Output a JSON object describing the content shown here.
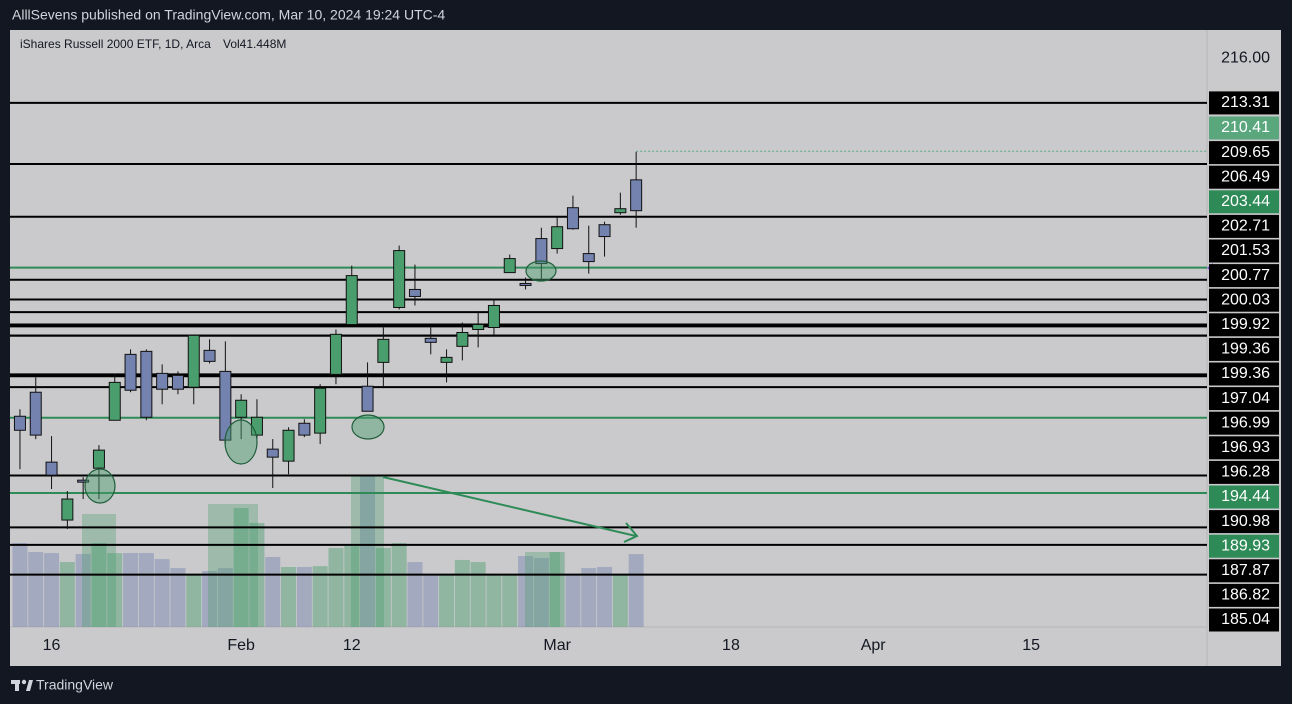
{
  "header": {
    "publisher": "AlllSevens published on TradingView.com, Mar 10, 2024 19:24 UTC-4"
  },
  "footer": {
    "brand": "TradingView"
  },
  "chart_data": {
    "type": "candlestick",
    "title": "iShares Russell 2000 ETF, 1D, Arca",
    "volume_label": "Vol41.448M",
    "up_color": "#4a9e6e",
    "down_color": "#7482b0",
    "open": [
      194.53,
      195.97,
      191.78,
      188.31,
      190.7,
      191.42,
      194.29,
      198.24,
      198.42,
      197.1,
      196.98,
      196.27,
      198.48,
      197.22,
      194.47,
      193.4,
      192.56,
      191.84,
      194.11,
      193.52,
      197.04,
      200.03,
      196.33,
      197.76,
      201.05,
      202.13,
      199.2,
      197.76,
      198.72,
      199.73,
      199.85,
      203.14,
      202.49,
      205.18,
      204.58,
      207.03,
      204.28,
      206.01,
      206.73,
      208.7
    ],
    "high": [
      194.95,
      196.86,
      193.34,
      190.05,
      190.88,
      192.8,
      197.04,
      198.54,
      198.54,
      197.64,
      197.22,
      199.38,
      199.14,
      199.02,
      195.85,
      195.55,
      193.16,
      193.87,
      194.35,
      196.45,
      199.73,
      203.56,
      197.76,
      199.85,
      204.76,
      203.62,
      199.85,
      198.54,
      200.15,
      200.81,
      201.47,
      204.22,
      202.84,
      205.83,
      206.43,
      207.75,
      205.95,
      206.19,
      207.93,
      210.38
    ],
    "low": [
      191.36,
      193.16,
      190.17,
      187.77,
      189.57,
      189.57,
      194.29,
      195.97,
      194.29,
      195.25,
      195.85,
      195.25,
      197.7,
      192.86,
      193.16,
      193.16,
      190.23,
      191.06,
      193.28,
      192.86,
      196.45,
      200.03,
      194.83,
      196.33,
      200.93,
      201.17,
      198.24,
      196.56,
      197.88,
      198.66,
      199.38,
      203.14,
      202.13,
      202.72,
      204.28,
      205.71,
      203.08,
      204.1,
      206.61,
      205.83
    ],
    "close": [
      193.69,
      193.4,
      191.0,
      189.57,
      190.58,
      192.5,
      196.56,
      196.09,
      194.47,
      196.15,
      196.15,
      199.38,
      197.82,
      193.1,
      195.49,
      194.47,
      192.08,
      193.69,
      193.4,
      196.21,
      199.44,
      202.96,
      194.83,
      199.14,
      204.46,
      201.71,
      198.96,
      198.06,
      199.55,
      200.03,
      201.17,
      203.98,
      202.37,
      203.68,
      205.89,
      205.77,
      203.8,
      205.3,
      206.97,
      206.85
    ],
    "volumes": [
      47.7,
      42.6,
      42.0,
      36.9,
      41.5,
      47.7,
      42.0,
      42.0,
      42.0,
      38.6,
      33.5,
      29.5,
      31.8,
      33.5,
      67.6,
      59.1,
      39.8,
      34.1,
      34.1,
      34.6,
      44.9,
      46.0,
      85.8,
      44.9,
      47.7,
      36.9,
      29.5,
      29.5,
      38.1,
      36.9,
      29.5,
      29.5,
      40.3,
      39.2,
      42.6,
      29.5,
      33.5,
      34.1,
      29.5,
      41.448
    ],
    "xlim": [
      -0.63,
      75.13
    ],
    "xticks": [
      {
        "value": 2,
        "label": "16"
      },
      {
        "value": 14,
        "label": "Feb"
      },
      {
        "value": 21,
        "label": "12"
      },
      {
        "value": 34,
        "label": "Mar"
      },
      {
        "value": 45,
        "label": "18"
      },
      {
        "value": 54,
        "label": "Apr"
      },
      {
        "value": 64,
        "label": "15"
      }
    ],
    "ylim": [
      181.9,
      217.68
    ],
    "yticks": [
      {
        "value": 216,
        "label": "216.00"
      }
    ],
    "levels": [
      {
        "value": 213.31,
        "color": "#000000"
      },
      {
        "value": 210.41,
        "color": "#5aa77e",
        "style": "dotted"
      },
      {
        "value": 209.65,
        "color": "#000000"
      },
      {
        "value": 206.49,
        "color": "#000000"
      },
      {
        "value": 203.44,
        "color": "#2e8b57"
      },
      {
        "value": 202.71,
        "color": "#000000"
      },
      {
        "value": 201.53,
        "color": "#000000"
      },
      {
        "value": 200.77,
        "color": "#000000"
      },
      {
        "value": 200.03,
        "color": "#000000"
      },
      {
        "value": 199.92,
        "color": "#000000"
      },
      {
        "value": 199.36,
        "color": "#000000"
      },
      {
        "value": 199.36,
        "color": "#000000"
      },
      {
        "value": 197.04,
        "color": "#000000"
      },
      {
        "value": 196.99,
        "color": "#000000"
      },
      {
        "value": 196.93,
        "color": "#000000"
      },
      {
        "value": 196.28,
        "color": "#000000"
      },
      {
        "value": 194.44,
        "color": "#2e8b57"
      },
      {
        "value": 190.98,
        "color": "#000000"
      },
      {
        "value": 189.93,
        "color": "#2e8b57"
      },
      {
        "value": 187.87,
        "color": "#000000"
      },
      {
        "value": 186.82,
        "color": "#000000"
      },
      {
        "value": 185.04,
        "color": "#000000"
      }
    ]
  }
}
